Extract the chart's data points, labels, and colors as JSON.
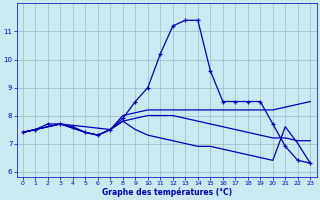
{
  "title": "Graphe des températures (°C)",
  "background_color": "#cce8f0",
  "line_color": "#0000bb",
  "grid_color": "#99bbc8",
  "xlim": [
    -0.5,
    23.5
  ],
  "ylim": [
    5.8,
    12.0
  ],
  "xticks": [
    0,
    1,
    2,
    3,
    4,
    5,
    6,
    7,
    8,
    9,
    10,
    11,
    12,
    13,
    14,
    15,
    16,
    17,
    18,
    19,
    20,
    21,
    22,
    23
  ],
  "yticks": [
    6,
    7,
    8,
    9,
    10,
    11
  ],
  "series": [
    {
      "x": [
        0,
        1,
        2,
        3,
        4,
        5,
        6,
        7,
        8,
        9,
        10,
        11,
        12,
        13,
        14,
        15,
        16,
        17,
        18,
        19,
        20,
        21,
        22,
        23
      ],
      "y": [
        7.4,
        7.5,
        7.7,
        7.7,
        7.6,
        7.4,
        7.3,
        7.5,
        7.9,
        8.5,
        9.0,
        10.2,
        11.2,
        11.4,
        11.4,
        9.6,
        8.5,
        8.5,
        8.5,
        8.5,
        7.7,
        6.9,
        6.4,
        6.3
      ],
      "marker": "+"
    },
    {
      "x": [
        0,
        3,
        7,
        8,
        9,
        10,
        11,
        12,
        13,
        14,
        15,
        16,
        17,
        18,
        19,
        20,
        21,
        22,
        23
      ],
      "y": [
        7.4,
        7.7,
        7.5,
        8.0,
        8.1,
        8.2,
        8.2,
        8.2,
        8.2,
        8.2,
        8.2,
        8.2,
        8.2,
        8.2,
        8.2,
        8.2,
        8.3,
        8.4,
        8.5
      ],
      "marker": null
    },
    {
      "x": [
        0,
        3,
        5,
        6,
        7,
        8,
        9,
        10,
        11,
        12,
        13,
        14,
        15,
        16,
        17,
        18,
        19,
        20,
        21,
        22,
        23
      ],
      "y": [
        7.4,
        7.7,
        7.4,
        7.3,
        7.5,
        7.8,
        7.9,
        8.0,
        8.0,
        8.0,
        7.9,
        7.8,
        7.7,
        7.6,
        7.5,
        7.4,
        7.3,
        7.2,
        7.2,
        7.1,
        7.1
      ],
      "marker": null
    },
    {
      "x": [
        0,
        3,
        5,
        6,
        7,
        8,
        9,
        10,
        11,
        12,
        13,
        14,
        15,
        16,
        17,
        18,
        19,
        20,
        21,
        22,
        23
      ],
      "y": [
        7.4,
        7.7,
        7.4,
        7.3,
        7.5,
        7.8,
        7.5,
        7.3,
        7.2,
        7.1,
        7.0,
        6.9,
        6.9,
        6.8,
        6.7,
        6.6,
        6.5,
        6.4,
        7.6,
        7.0,
        6.3
      ],
      "marker": null
    }
  ]
}
